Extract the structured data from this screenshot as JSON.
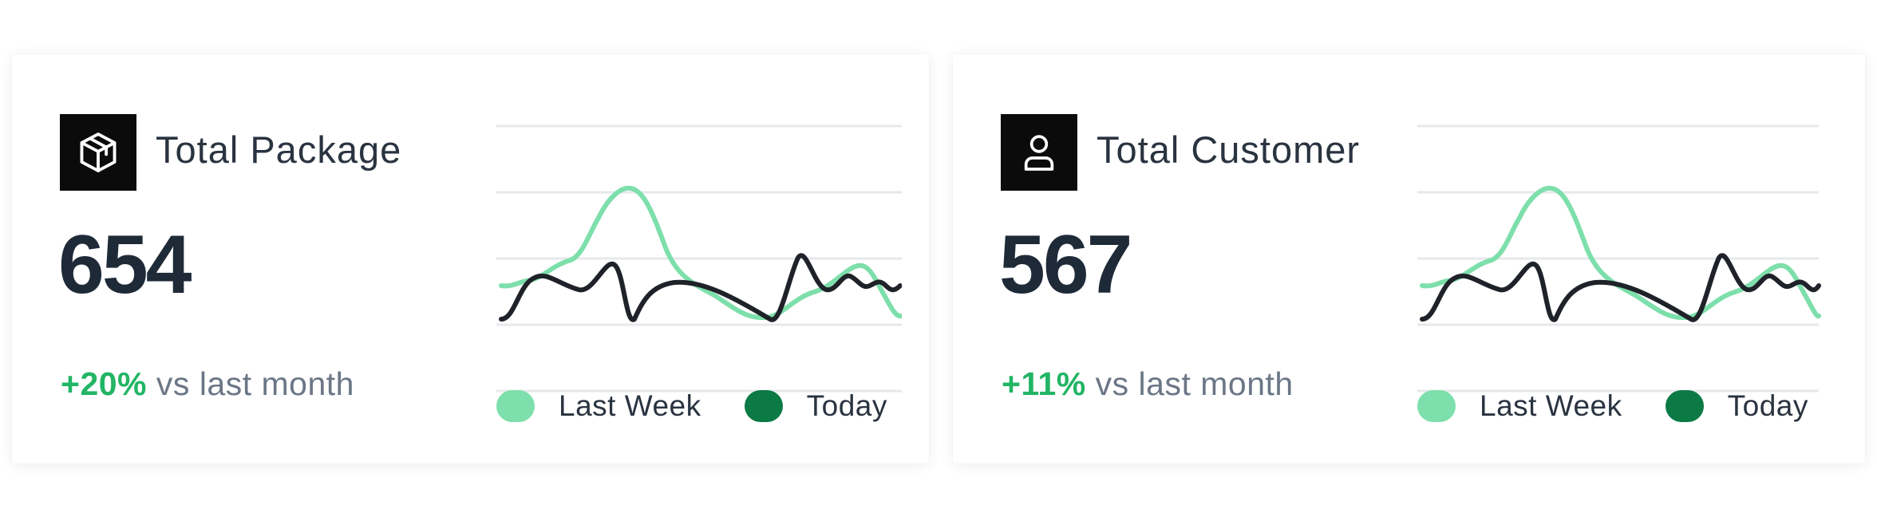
{
  "colors": {
    "last_week": "#7ddfab",
    "today_line": "#1f2229",
    "today_swatch": "#0b7a45",
    "positive": "#22b565",
    "grid": "#e6e8eb"
  },
  "legend": {
    "last_week": "Last Week",
    "today": "Today"
  },
  "cards": [
    {
      "icon": "package-icon",
      "title": "Total Package",
      "value": "654",
      "change_pct": "+20%",
      "change_suffix": "vs last month"
    },
    {
      "icon": "user-icon",
      "title": "Total Customer",
      "value": "567",
      "change_pct": "+11%",
      "change_suffix": "vs last month"
    }
  ]
}
